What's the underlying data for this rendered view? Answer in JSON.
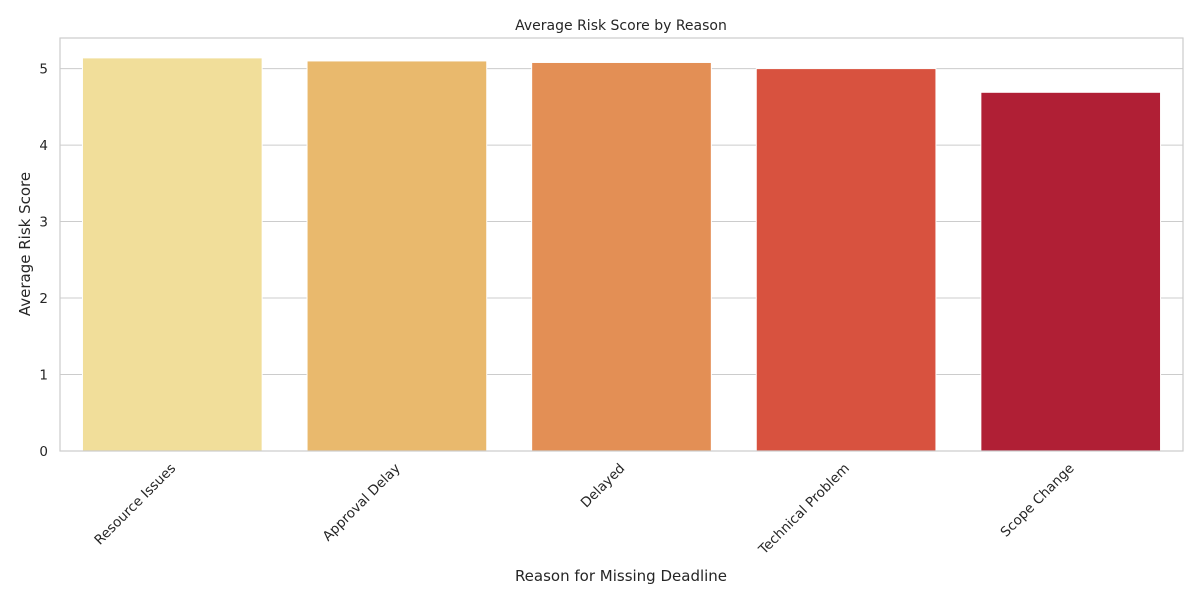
{
  "chart_data": {
    "type": "bar",
    "title": "Average Risk Score by Reason",
    "xlabel": "Reason for Missing Deadline",
    "ylabel": "Average Risk Score",
    "categories": [
      "Resource Issues",
      "Approval Delay",
      "Delayed",
      "Technical Problem",
      "Scope Change"
    ],
    "values": [
      5.14,
      5.1,
      5.08,
      5.0,
      4.69
    ],
    "colors": [
      "#f1de9a",
      "#e9b96d",
      "#e38f55",
      "#d8523f",
      "#b01f35"
    ],
    "ylim": [
      0,
      5.4
    ],
    "yticks": [
      0,
      1,
      2,
      3,
      4,
      5
    ],
    "grid": true,
    "legend": "none"
  }
}
